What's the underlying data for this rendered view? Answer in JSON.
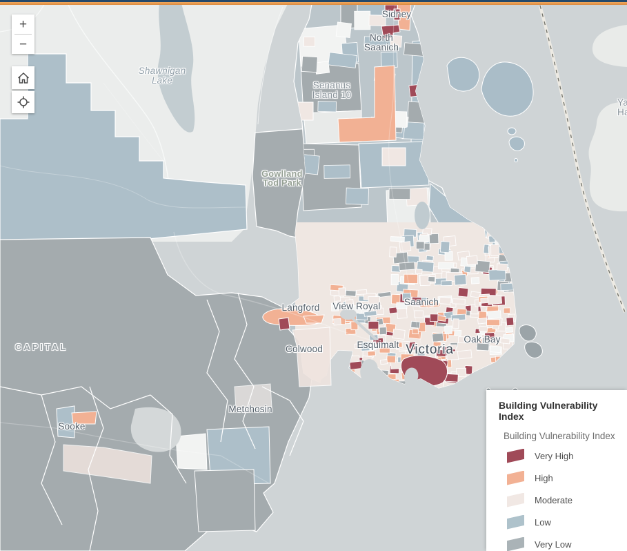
{
  "map": {
    "colors": {
      "water": "#cfd4d6",
      "outer_land": "#ebedec",
      "boundary": "#ffffff"
    },
    "labels": {
      "sidney": "Sidney",
      "north_saanich": "North\nSaanich",
      "senanus": "Senanus\nIsland 10",
      "shawnigan_lake": "Shawnigan\nLake",
      "gowlland_tod": "Gowlland\nTod Park",
      "langford": "Langford",
      "view_royal": "View Royal",
      "saanich": "Saanich",
      "esquimalt": "Esquimalt",
      "victoria": "Victoria",
      "oak_bay": "Oak Bay",
      "colwood": "Colwood",
      "metchosin": "Metchosin",
      "sooke": "Sooke",
      "capital": "CAPITAL",
      "edge_partial": "Ya\nHa"
    }
  },
  "controls": {
    "zoom_in": "+",
    "zoom_out": "−",
    "home": "home",
    "locate": "locate"
  },
  "legend": {
    "title": "Building Vulnerability Index",
    "layer_title": "Building Vulnerability Index",
    "items": [
      {
        "label": "Very High",
        "color": "#a04a58"
      },
      {
        "label": "High",
        "color": "#f2b194"
      },
      {
        "label": "Moderate",
        "color": "#f1e8e4"
      },
      {
        "label": "Low",
        "color": "#aec2cb"
      },
      {
        "label": "Very Low",
        "color": "#aab3b7"
      }
    ]
  }
}
